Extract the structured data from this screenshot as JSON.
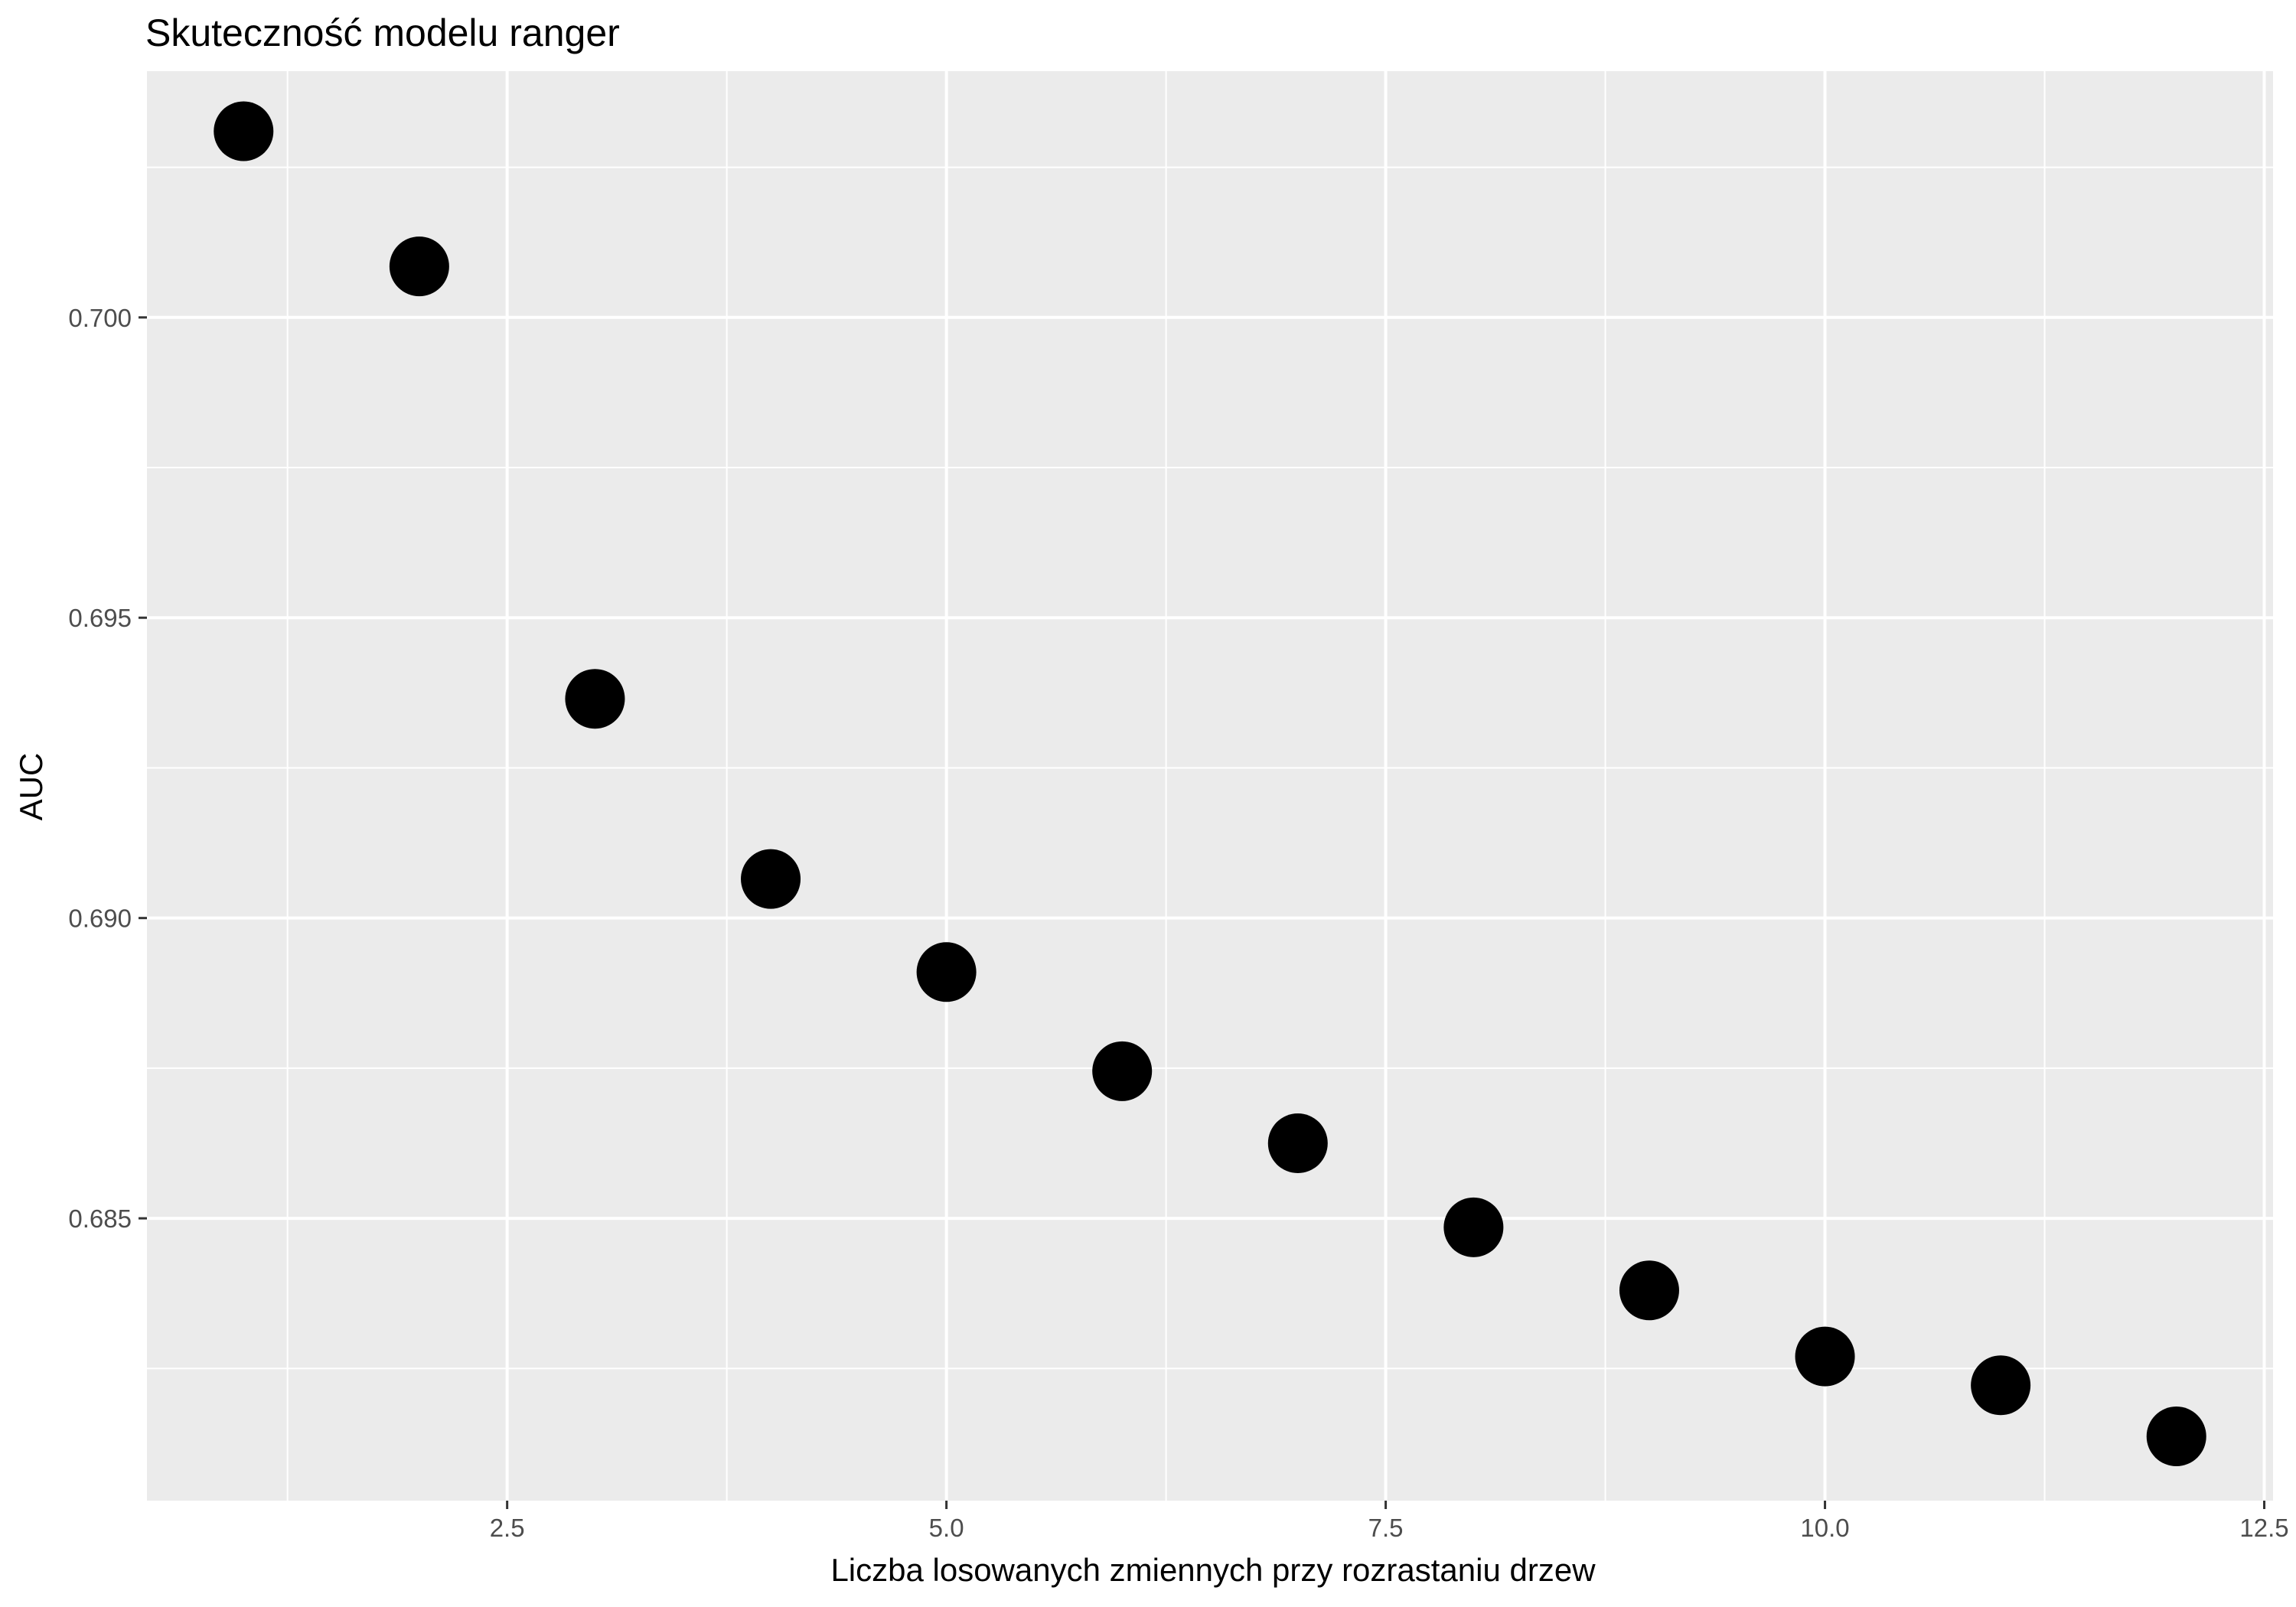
{
  "chart_data": {
    "type": "scatter",
    "title": "Skuteczność modelu ranger",
    "xlabel": "Liczba losowanych zmiennych przy rozrastaniu drzew",
    "ylabel": "AUC",
    "x": [
      1,
      2,
      3,
      4,
      5,
      6,
      7,
      8,
      9,
      10,
      11,
      12
    ],
    "y": [
      0.7031,
      0.70085,
      0.69365,
      0.69065,
      0.6891,
      0.68745,
      0.68625,
      0.68485,
      0.6838,
      0.6827,
      0.68222,
      0.68137
    ],
    "xlim": [
      0.45,
      12.55
    ],
    "ylim": [
      0.6803,
      0.7041
    ],
    "x_ticks": [
      2.5,
      5.0,
      7.5,
      10.0,
      12.5
    ],
    "x_tick_labels": [
      "2.5",
      "5.0",
      "7.5",
      "10.0",
      "12.5"
    ],
    "x_minor_ticks": [
      1.25,
      3.75,
      6.25,
      8.75,
      11.25
    ],
    "y_ticks": [
      0.685,
      0.69,
      0.695,
      0.7
    ],
    "y_tick_labels": [
      "0.685",
      "0.690",
      "0.695",
      "0.700"
    ],
    "y_minor_ticks": [
      0.6825,
      0.6875,
      0.6925,
      0.6975,
      0.7025
    ],
    "grid": true,
    "legend": "none",
    "colors": {
      "panel_background": "#ebebeb",
      "grid_line": "#ffffff",
      "point": "#000000",
      "tick_mark": "#333333",
      "tick_label": "#4d4d4d",
      "text": "#000000"
    }
  }
}
